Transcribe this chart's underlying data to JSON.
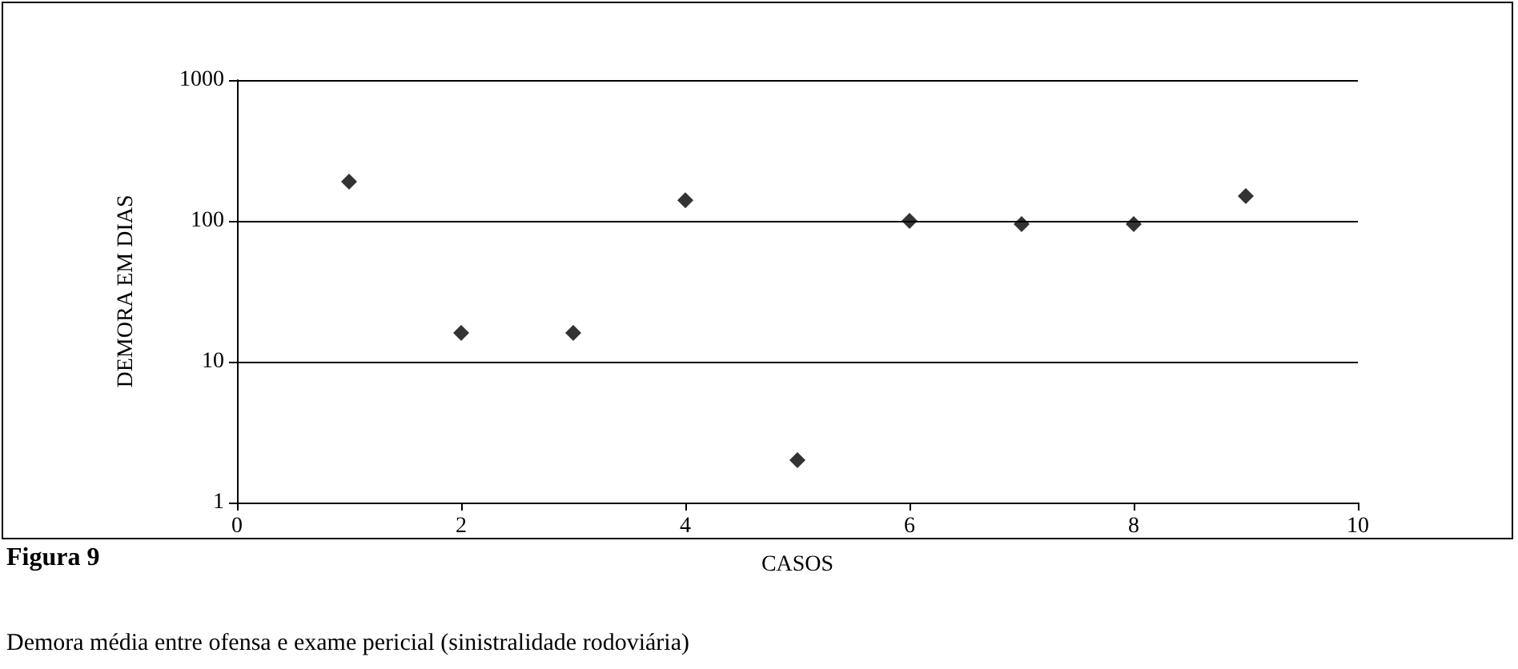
{
  "chart_data": {
    "type": "scatter",
    "title": "Figura 9",
    "subtitle": "Demora média entre ofensa e exame pericial (sinistralidade rodoviária)",
    "xlabel": "CASOS",
    "ylabel": "DEMORA EM DIAS",
    "x": [
      1,
      2,
      3,
      4,
      5,
      6,
      7,
      8,
      9
    ],
    "series": [
      {
        "color": "#000000",
        "values": [
          190,
          16,
          16,
          140,
          2,
          100,
          95,
          95,
          150
        ]
      }
    ],
    "xlim": [
      0,
      10
    ],
    "xticks": [
      0,
      2,
      4,
      6,
      8,
      10
    ],
    "ylim": [
      1,
      1000
    ],
    "yticks": [
      1,
      10,
      100,
      1000
    ],
    "log": "y",
    "grid": "y",
    "marker": "diamond"
  }
}
